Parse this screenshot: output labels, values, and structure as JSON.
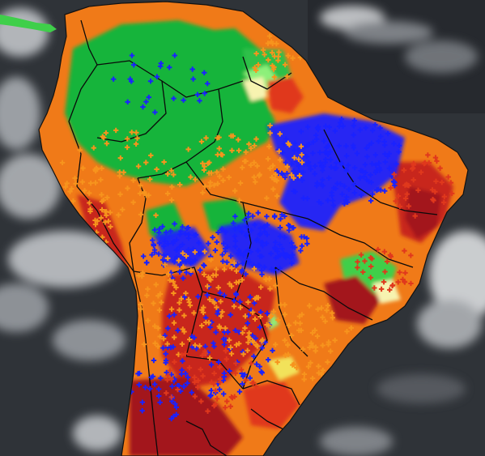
{
  "map": {
    "region": "South America",
    "basemap": "satellite-imagery",
    "colors": {
      "ocean": "#2f3338",
      "ocean_dark": "#24272b",
      "cloud": "#c9ccd0",
      "cloud_bright": "#e6e8ea",
      "land_dry": "#c8281c",
      "land_dark_red": "#a3121a",
      "land_orange": "#f07a18",
      "land_yellow": "#f2e25a",
      "land_green": "#19b43a",
      "land_light_green": "#8df07a",
      "land_pale": "#f7f3b0",
      "marker_blue": "#1a22ff",
      "marker_orange": "#f7941d",
      "marker_red": "#e0381c",
      "borders": "#0a0a0a",
      "caribbean": "#3fcf4a"
    },
    "marker_shape": "plus-sign",
    "legend": null
  }
}
